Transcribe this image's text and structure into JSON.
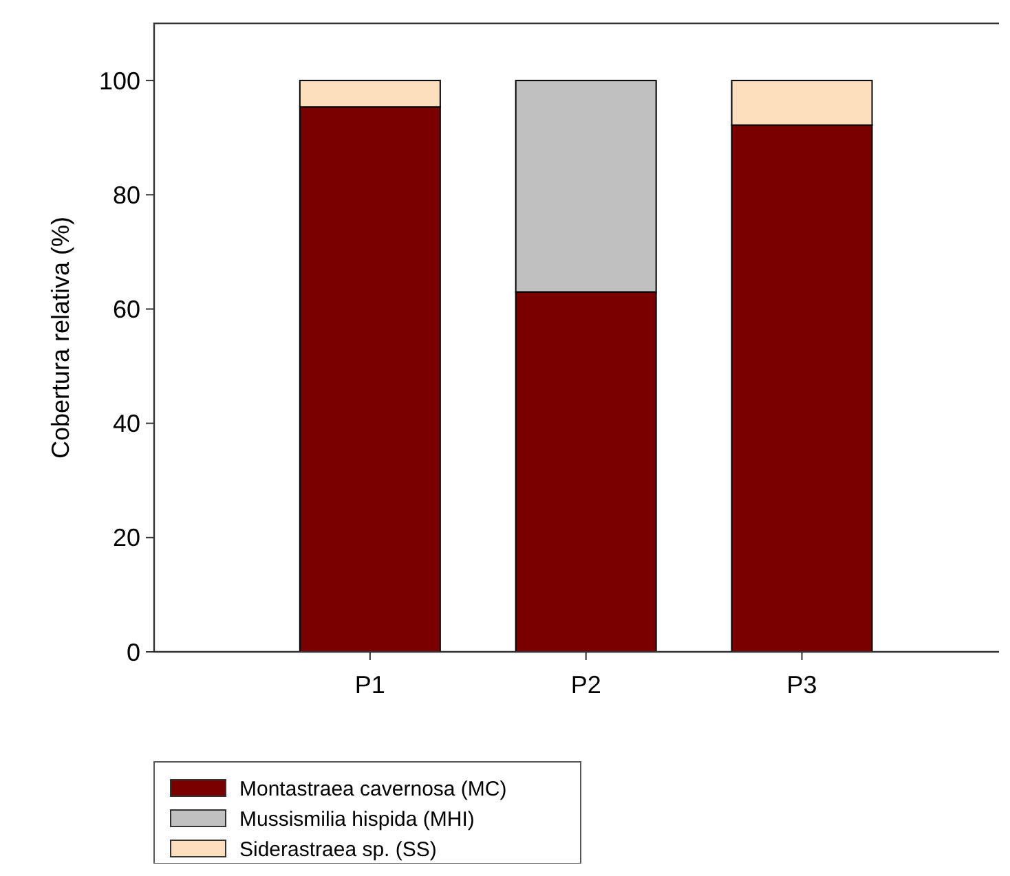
{
  "chart_data": {
    "type": "bar",
    "ylabel": "Cobertura relativa (%)",
    "categories": [
      "P1",
      "P2",
      "P3"
    ],
    "stacked": true,
    "legend": "bottom",
    "series": [
      {
        "name": "Montastraea cavernosa (MC)",
        "color": "#7a0000",
        "values": [
          95.4,
          63,
          92.2
        ]
      },
      {
        "name": "Mussismilia hispida (MHI)",
        "color": "#c0c0c0",
        "values": [
          0,
          37,
          0
        ]
      },
      {
        "name": "Siderastraea sp. (SS)",
        "color": "#fddfbd",
        "values": [
          4.6,
          0,
          7.8
        ]
      }
    ],
    "ylim": [
      0,
      110
    ],
    "yticks": [
      0,
      20,
      40,
      60,
      80,
      100
    ],
    "grid": false
  }
}
